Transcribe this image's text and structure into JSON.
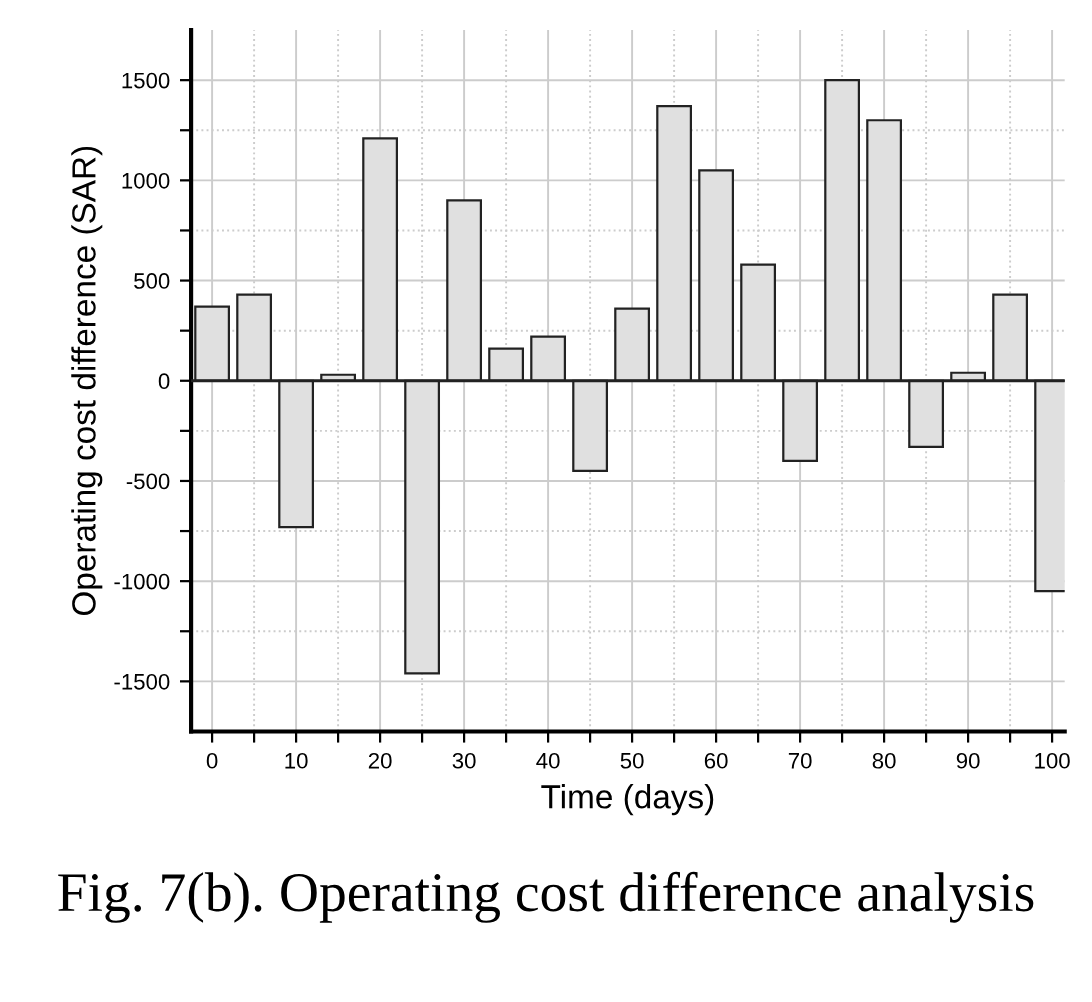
{
  "chart_data": {
    "type": "bar",
    "x": [
      0,
      5,
      10,
      15,
      20,
      25,
      30,
      35,
      40,
      45,
      50,
      55,
      60,
      65,
      70,
      75,
      80,
      85,
      90,
      95,
      100
    ],
    "values": [
      370,
      430,
      -730,
      30,
      1210,
      -1460,
      900,
      160,
      220,
      -450,
      360,
      1370,
      1050,
      580,
      -400,
      1500,
      1300,
      -330,
      40,
      430,
      -1050
    ],
    "color": "#e0e0e0",
    "xlabel": "Time (days)",
    "ylabel": "Operating cost difference (SAR)",
    "xlim": [
      -2.5,
      101.5
    ],
    "ylim": [
      -1750,
      1750
    ],
    "xticks": [
      0,
      {
        "value": 5,
        "label": null
      },
      10,
      {
        "value": 15,
        "label": null
      },
      20,
      {
        "value": 25,
        "label": null
      },
      30,
      {
        "value": 35,
        "label": null
      },
      40,
      {
        "value": 45,
        "label": null
      },
      50,
      {
        "value": 55,
        "label": null
      },
      60,
      {
        "value": 65,
        "label": null
      },
      70,
      {
        "value": 75,
        "label": null
      },
      80,
      {
        "value": 85,
        "label": null
      },
      90,
      {
        "value": 95,
        "label": null
      },
      100
    ],
    "yticks": [
      -1500,
      {
        "value": -1250,
        "label": null
      },
      -1000,
      {
        "value": -750,
        "label": null
      },
      -500,
      {
        "value": -250,
        "label": null
      },
      0,
      {
        "value": 250,
        "label": null
      },
      500,
      {
        "value": 750,
        "label": null
      },
      1000,
      {
        "value": 1250,
        "label": null
      },
      1500
    ],
    "grid": true,
    "annotations": [
      "Fig. 7(b). Operating cost difference analysis"
    ]
  }
}
